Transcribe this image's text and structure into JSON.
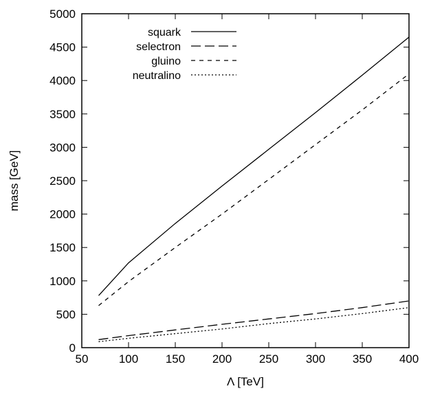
{
  "chart_data": {
    "type": "line",
    "title": "",
    "xlabel": "Λ [TeV]",
    "ylabel": "mass [GeV]",
    "xlim": [
      50,
      400
    ],
    "ylim": [
      0,
      5000
    ],
    "xticks": [
      50,
      100,
      150,
      200,
      250,
      300,
      350,
      400
    ],
    "yticks": [
      0,
      500,
      1000,
      1500,
      2000,
      2500,
      3000,
      3500,
      4000,
      4500,
      5000
    ],
    "grid": false,
    "legend_position": "top-left",
    "series": [
      {
        "name": "squark",
        "line_style": "solid",
        "x": [
          68,
          100,
          150,
          200,
          250,
          300,
          350,
          400
        ],
        "y": [
          780,
          1270,
          1860,
          2420,
          2970,
          3520,
          4080,
          4650
        ]
      },
      {
        "name": "selectron",
        "line_style": "long-dash",
        "x": [
          68,
          100,
          150,
          200,
          250,
          300,
          350,
          400
        ],
        "y": [
          120,
          180,
          265,
          350,
          430,
          510,
          600,
          700
        ]
      },
      {
        "name": "gluino",
        "line_style": "short-dash",
        "x": [
          68,
          100,
          150,
          200,
          250,
          300,
          350,
          400
        ],
        "y": [
          630,
          990,
          1500,
          2000,
          2520,
          3040,
          3560,
          4100
        ]
      },
      {
        "name": "neutralino",
        "line_style": "dotted",
        "x": [
          68,
          100,
          150,
          200,
          250,
          300,
          350,
          400
        ],
        "y": [
          90,
          140,
          210,
          280,
          360,
          430,
          510,
          600
        ]
      }
    ]
  }
}
